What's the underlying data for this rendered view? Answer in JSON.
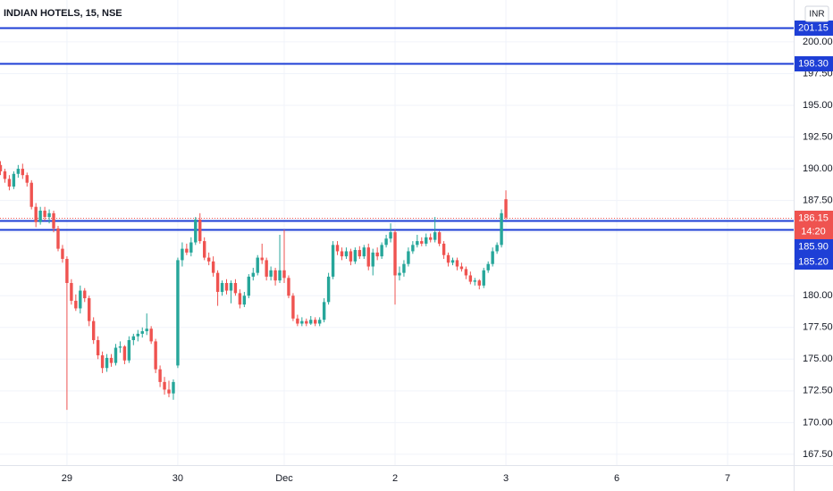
{
  "chart_data": {
    "type": "candlestick",
    "title": "INDIAN HOTELS, 15, NSE",
    "currency": "INR",
    "up_color": "#26a69a",
    "down_color": "#ef5350",
    "grid": true,
    "xlim": [
      -15.1,
      163.9
    ],
    "ylim": [
      166.65,
      203.3
    ],
    "xticks": [
      {
        "value": 0,
        "label": "29"
      },
      {
        "value": 25,
        "label": "30"
      },
      {
        "value": 49,
        "label": "Dec"
      },
      {
        "value": 74,
        "label": "2"
      },
      {
        "value": 99,
        "label": "3"
      },
      {
        "value": 124,
        "label": "6"
      },
      {
        "value": 149,
        "label": "7"
      }
    ],
    "yticks": [
      {
        "value": 167.5,
        "label": "167.50"
      },
      {
        "value": 170,
        "label": "170.00"
      },
      {
        "value": 172.5,
        "label": "172.50"
      },
      {
        "value": 175,
        "label": "175.00"
      },
      {
        "value": 177.5,
        "label": "177.50"
      },
      {
        "value": 180,
        "label": "180.00"
      },
      {
        "value": 182.5,
        "label": "182.50"
      },
      {
        "value": 185,
        "label": "185.00"
      },
      {
        "value": 187.5,
        "label": "187.50"
      },
      {
        "value": 190,
        "label": "190.00"
      },
      {
        "value": 192.5,
        "label": "192.50"
      },
      {
        "value": 195,
        "label": "195.00"
      },
      {
        "value": 197.5,
        "label": "197.50"
      },
      {
        "value": 200,
        "label": "200.00"
      }
    ],
    "x": [
      -15,
      -14,
      -13,
      -12,
      -11,
      -10,
      -9,
      -8,
      -7,
      -6,
      -5,
      -4,
      -3,
      -2,
      -1,
      0,
      1,
      2,
      3,
      4,
      5,
      6,
      7,
      8,
      9,
      10,
      11,
      12,
      13,
      14,
      15,
      16,
      17,
      18,
      19,
      20,
      21,
      22,
      23,
      24,
      25,
      26,
      27,
      28,
      29,
      30,
      31,
      32,
      33,
      34,
      35,
      36,
      37,
      38,
      39,
      40,
      41,
      42,
      43,
      44,
      45,
      46,
      47,
      48,
      49,
      50,
      51,
      52,
      53,
      54,
      55,
      56,
      57,
      58,
      59,
      60,
      61,
      62,
      63,
      64,
      65,
      66,
      67,
      68,
      69,
      70,
      71,
      72,
      73,
      74,
      75,
      76,
      77,
      78,
      79,
      80,
      81,
      82,
      83,
      84,
      85,
      86,
      87,
      88,
      89,
      90,
      91,
      92,
      93,
      94,
      95,
      96,
      97,
      98,
      99
    ],
    "open": [
      190.3,
      189.8,
      189.2,
      188.6,
      189.6,
      190.0,
      189.5,
      188.9,
      187.0,
      185.8,
      186.7,
      186.2,
      186.5,
      185.3,
      183.7,
      182.9,
      181.0,
      179.6,
      179.0,
      180.4,
      179.8,
      178.0,
      176.5,
      175.3,
      174.3,
      175.1,
      174.7,
      175.9,
      176.0,
      174.9,
      176.5,
      176.8,
      177.0,
      177.2,
      177.4,
      176.4,
      174.2,
      173.2,
      172.6,
      172.3,
      174.5,
      182.8,
      183.7,
      183.4,
      184.2,
      186.0,
      184.3,
      183.0,
      182.7,
      181.8,
      180.3,
      181.0,
      180.4,
      181.0,
      180.2,
      179.3,
      180.0,
      181.5,
      181.8,
      183.0,
      182.8,
      181.5,
      182.0,
      181.2,
      182.0,
      181.4,
      180.0,
      178.2,
      177.8,
      178.0,
      177.8,
      178.1,
      177.8,
      178.1,
      179.5,
      181.5,
      184.0,
      183.5,
      183.1,
      183.5,
      182.7,
      183.6,
      183.1,
      183.8,
      182.3,
      183.4,
      183.1,
      184.0,
      184.5,
      185.0,
      181.6,
      181.8,
      182.5,
      183.5,
      184.0,
      184.3,
      184.1,
      184.6,
      184.4,
      185.0,
      184.1,
      183.2,
      182.6,
      182.8,
      182.3,
      182.1,
      181.6,
      181.1,
      181.2,
      180.8,
      182.0,
      182.5,
      183.5,
      184.0,
      187.6
    ],
    "high": [
      190.6,
      190.0,
      189.5,
      189.8,
      190.3,
      190.4,
      189.7,
      189.1,
      187.3,
      187.0,
      187.0,
      186.8,
      186.7,
      185.5,
      184.0,
      183.1,
      181.3,
      180.1,
      180.8,
      180.6,
      180.0,
      178.3,
      176.8,
      175.6,
      175.4,
      175.4,
      176.2,
      176.4,
      176.1,
      176.8,
      177.0,
      177.3,
      177.5,
      178.6,
      177.6,
      176.6,
      174.5,
      173.6,
      173.3,
      173.4,
      183.0,
      184.2,
      184.1,
      184.6,
      186.2,
      186.5,
      184.6,
      183.4,
      183.1,
      182.0,
      181.2,
      181.3,
      181.2,
      181.3,
      180.5,
      180.3,
      181.7,
      182.2,
      183.2,
      184.1,
      183.0,
      182.3,
      182.2,
      184.8,
      185.2,
      181.6,
      180.2,
      178.5,
      178.3,
      178.2,
      178.4,
      178.3,
      178.3,
      179.8,
      181.8,
      184.3,
      184.3,
      183.8,
      183.8,
      183.7,
      183.8,
      183.9,
      184.0,
      184.1,
      183.7,
      183.8,
      184.2,
      184.8,
      185.7,
      185.2,
      182.3,
      182.8,
      183.8,
      184.3,
      184.8,
      184.6,
      184.9,
      184.9,
      186.2,
      185.1,
      184.3,
      183.4,
      183.0,
      183.0,
      182.6,
      182.3,
      181.9,
      181.4,
      181.3,
      182.2,
      182.7,
      183.8,
      184.2,
      186.8,
      188.3
    ],
    "low": [
      189.5,
      188.9,
      188.3,
      188.4,
      189.3,
      189.2,
      188.6,
      186.8,
      185.4,
      185.6,
      185.9,
      185.7,
      185.0,
      183.5,
      182.6,
      171.0,
      179.3,
      178.8,
      178.6,
      179.5,
      177.6,
      176.2,
      175.0,
      173.9,
      174.0,
      174.4,
      174.5,
      175.5,
      174.6,
      174.7,
      176.1,
      176.4,
      176.7,
      176.9,
      176.2,
      173.9,
      172.8,
      172.2,
      172.0,
      171.8,
      174.3,
      182.3,
      183.2,
      183.1,
      184.0,
      184.1,
      182.8,
      182.4,
      181.5,
      179.2,
      180.0,
      180.1,
      179.4,
      180.0,
      179.0,
      179.1,
      179.8,
      181.2,
      181.6,
      182.5,
      181.2,
      181.2,
      180.8,
      181.0,
      181.0,
      179.8,
      178.0,
      177.6,
      177.6,
      177.6,
      177.7,
      177.6,
      177.6,
      177.9,
      179.3,
      181.3,
      183.2,
      182.8,
      182.9,
      182.4,
      182.5,
      182.9,
      182.9,
      182.0,
      181.6,
      182.8,
      182.9,
      183.8,
      184.2,
      179.3,
      181.2,
      181.5,
      182.3,
      183.3,
      183.8,
      183.9,
      183.9,
      184.2,
      184.2,
      183.9,
      182.9,
      182.3,
      182.4,
      182.0,
      181.9,
      181.3,
      180.9,
      180.8,
      180.5,
      180.6,
      181.8,
      182.3,
      183.3,
      183.8,
      186.0
    ],
    "close": [
      189.8,
      189.2,
      188.6,
      189.6,
      190.0,
      189.5,
      188.9,
      187.0,
      185.8,
      186.7,
      186.2,
      186.5,
      185.3,
      183.7,
      182.9,
      181.0,
      179.6,
      179.0,
      180.4,
      179.8,
      178.0,
      176.5,
      175.3,
      174.3,
      175.1,
      174.7,
      175.9,
      176.0,
      174.9,
      176.5,
      176.8,
      177.0,
      177.2,
      177.4,
      176.4,
      174.2,
      173.2,
      172.6,
      172.3,
      173.2,
      182.8,
      183.7,
      183.4,
      184.2,
      186.0,
      184.3,
      183.0,
      182.7,
      181.8,
      180.3,
      181.0,
      180.4,
      181.0,
      180.2,
      179.3,
      180.0,
      181.5,
      181.8,
      183.0,
      182.8,
      181.5,
      182.0,
      181.2,
      182.0,
      181.4,
      180.0,
      178.2,
      177.8,
      178.0,
      177.8,
      178.1,
      177.8,
      178.1,
      179.5,
      181.5,
      184.0,
      183.5,
      183.1,
      183.5,
      182.7,
      183.6,
      183.1,
      183.8,
      182.3,
      183.4,
      183.1,
      184.0,
      184.5,
      185.0,
      181.6,
      181.8,
      182.5,
      183.5,
      184.0,
      184.3,
      184.1,
      184.6,
      184.4,
      185.0,
      184.1,
      183.2,
      182.6,
      182.8,
      182.3,
      182.1,
      181.6,
      181.1,
      181.2,
      180.8,
      182.0,
      182.5,
      183.5,
      184.0,
      186.5,
      186.15
    ],
    "hlines": {
      "color": "#1e3fd6",
      "values": [
        201.15,
        198.3,
        185.9,
        185.2
      ],
      "value_labels": [
        "201.15",
        "198.30",
        "185.90",
        "185.20"
      ]
    },
    "last_price": {
      "value": 186.15,
      "label": "186.15",
      "countdown": "14:20",
      "color": "#ef5350"
    }
  }
}
